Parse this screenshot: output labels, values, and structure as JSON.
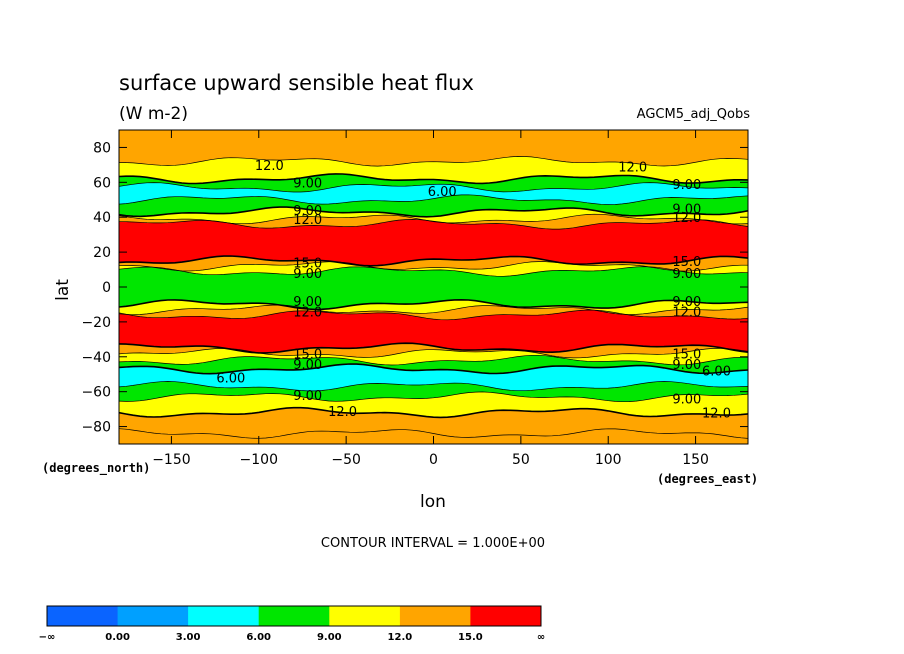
{
  "chart_data": {
    "type": "heatmap",
    "title": "surface upward sensible heat flux",
    "subtitle": "(W m-2)",
    "dataset_label": "AGCM5_adj_Qobs",
    "xlabel": "lon",
    "ylabel": "lat",
    "x_units": "(degrees_east)",
    "y_units": "(degrees_north)",
    "xlim": [
      -180,
      180
    ],
    "ylim": [
      -90,
      90
    ],
    "x_ticks": [
      -150,
      -100,
      -50,
      0,
      50,
      100,
      150
    ],
    "x_tick_labels": [
      "−150",
      "−100",
      "−50",
      "0",
      "50",
      "100",
      "150"
    ],
    "y_ticks": [
      -80,
      -60,
      -40,
      -20,
      0,
      20,
      40,
      60,
      80
    ],
    "y_tick_labels": [
      "−80",
      "−60",
      "−40",
      "−20",
      "0",
      "20",
      "40",
      "60",
      "80"
    ],
    "contour_interval_text": "CONTOUR INTERVAL = 1.000E+00",
    "contour_interval": 1.0,
    "colorbar": {
      "boundaries": [
        "−∞",
        "0.00",
        "3.00",
        "6.00",
        "9.00",
        "12.0",
        "15.0",
        "∞"
      ],
      "colors": [
        "#0a64ff",
        "#00a0ff",
        "#00ffff",
        "#00e600",
        "#ffff00",
        "#ffa500",
        "#ff0000"
      ]
    },
    "zonal_bands": [
      {
        "lat_from": -90,
        "lat_to": -84,
        "range": "12.0-15.0",
        "color": "#ffa500"
      },
      {
        "lat_from": -84,
        "lat_to": -72,
        "range": "12.0-15.0",
        "color": "#ffa500"
      },
      {
        "lat_from": -72,
        "lat_to": -63,
        "range": "9.00-12.0",
        "color": "#ffff00"
      },
      {
        "lat_from": -63,
        "lat_to": -57,
        "range": "6.00-9.00",
        "color": "#00e600"
      },
      {
        "lat_from": -57,
        "lat_to": -47,
        "range": "3.00-6.00",
        "color": "#00ffff"
      },
      {
        "lat_from": -47,
        "lat_to": -42,
        "range": "6.00-9.00",
        "color": "#00e600"
      },
      {
        "lat_from": -42,
        "lat_to": -38,
        "range": "9.00-12.0",
        "color": "#ffff00"
      },
      {
        "lat_from": -38,
        "lat_to": -35,
        "range": "12.0-15.0",
        "color": "#ffa500"
      },
      {
        "lat_from": -35,
        "lat_to": -16,
        "range": "> 15.0",
        "color": "#ff0000"
      },
      {
        "lat_from": -16,
        "lat_to": -13,
        "range": "12.0-15.0",
        "color": "#ffa500"
      },
      {
        "lat_from": -13,
        "lat_to": -10,
        "range": "9.00-12.0",
        "color": "#ffff00"
      },
      {
        "lat_from": -10,
        "lat_to": 9,
        "range": "6.00-9.00",
        "color": "#00e600"
      },
      {
        "lat_from": 9,
        "lat_to": 12,
        "range": "9.00-12.0",
        "color": "#ffff00"
      },
      {
        "lat_from": 12,
        "lat_to": 15,
        "range": "12.0-15.0",
        "color": "#ffa500"
      },
      {
        "lat_from": 15,
        "lat_to": 36,
        "range": "> 15.0",
        "color": "#ff0000"
      },
      {
        "lat_from": 36,
        "lat_to": 39,
        "range": "12.0-15.0",
        "color": "#ffa500"
      },
      {
        "lat_from": 39,
        "lat_to": 43,
        "range": "9.00-12.0",
        "color": "#ffff00"
      },
      {
        "lat_from": 43,
        "lat_to": 50,
        "range": "6.00-9.00",
        "color": "#00e600"
      },
      {
        "lat_from": 50,
        "lat_to": 57,
        "range": "3.00-6.00",
        "color": "#00ffff"
      },
      {
        "lat_from": 57,
        "lat_to": 62,
        "range": "6.00-9.00",
        "color": "#00e600"
      },
      {
        "lat_from": 62,
        "lat_to": 72,
        "range": "9.00-12.0",
        "color": "#ffff00"
      },
      {
        "lat_from": 72,
        "lat_to": 90,
        "range": "12.0-15.0",
        "color": "#ffa500"
      }
    ],
    "contour_labels": [
      {
        "text": "12.0",
        "lon": -94,
        "lat": 70
      },
      {
        "text": "12.0",
        "lon": 114,
        "lat": 69
      },
      {
        "text": "9.00",
        "lon": -72,
        "lat": 60
      },
      {
        "text": "6.00",
        "lon": 5,
        "lat": 55
      },
      {
        "text": "9.00",
        "lon": 145,
        "lat": 59
      },
      {
        "text": "9.00",
        "lon": -72,
        "lat": 44
      },
      {
        "text": "12.0",
        "lon": -72,
        "lat": 39
      },
      {
        "text": "9.00",
        "lon": 145,
        "lat": 45
      },
      {
        "text": "12.0",
        "lon": 145,
        "lat": 40
      },
      {
        "text": "15.0",
        "lon": -72,
        "lat": 14
      },
      {
        "text": "9.00",
        "lon": -72,
        "lat": 8
      },
      {
        "text": "15.0",
        "lon": 145,
        "lat": 15
      },
      {
        "text": "9.00",
        "lon": 145,
        "lat": 8
      },
      {
        "text": "9.00",
        "lon": -72,
        "lat": -8
      },
      {
        "text": "12.0",
        "lon": -72,
        "lat": -14
      },
      {
        "text": "9.00",
        "lon": 145,
        "lat": -8
      },
      {
        "text": "12.0",
        "lon": 145,
        "lat": -14
      },
      {
        "text": "15.0",
        "lon": -72,
        "lat": -38
      },
      {
        "text": "9.00",
        "lon": -72,
        "lat": -44
      },
      {
        "text": "15.0",
        "lon": 145,
        "lat": -38
      },
      {
        "text": "9.00",
        "lon": 145,
        "lat": -44
      },
      {
        "text": "6.00",
        "lon": -116,
        "lat": -52
      },
      {
        "text": "6.00",
        "lon": 162,
        "lat": -48
      },
      {
        "text": "9.00",
        "lon": -72,
        "lat": -62
      },
      {
        "text": "12.0",
        "lon": -52,
        "lat": -71
      },
      {
        "text": "9.00",
        "lon": 145,
        "lat": -64
      },
      {
        "text": "12.0",
        "lon": 162,
        "lat": -72
      }
    ]
  }
}
